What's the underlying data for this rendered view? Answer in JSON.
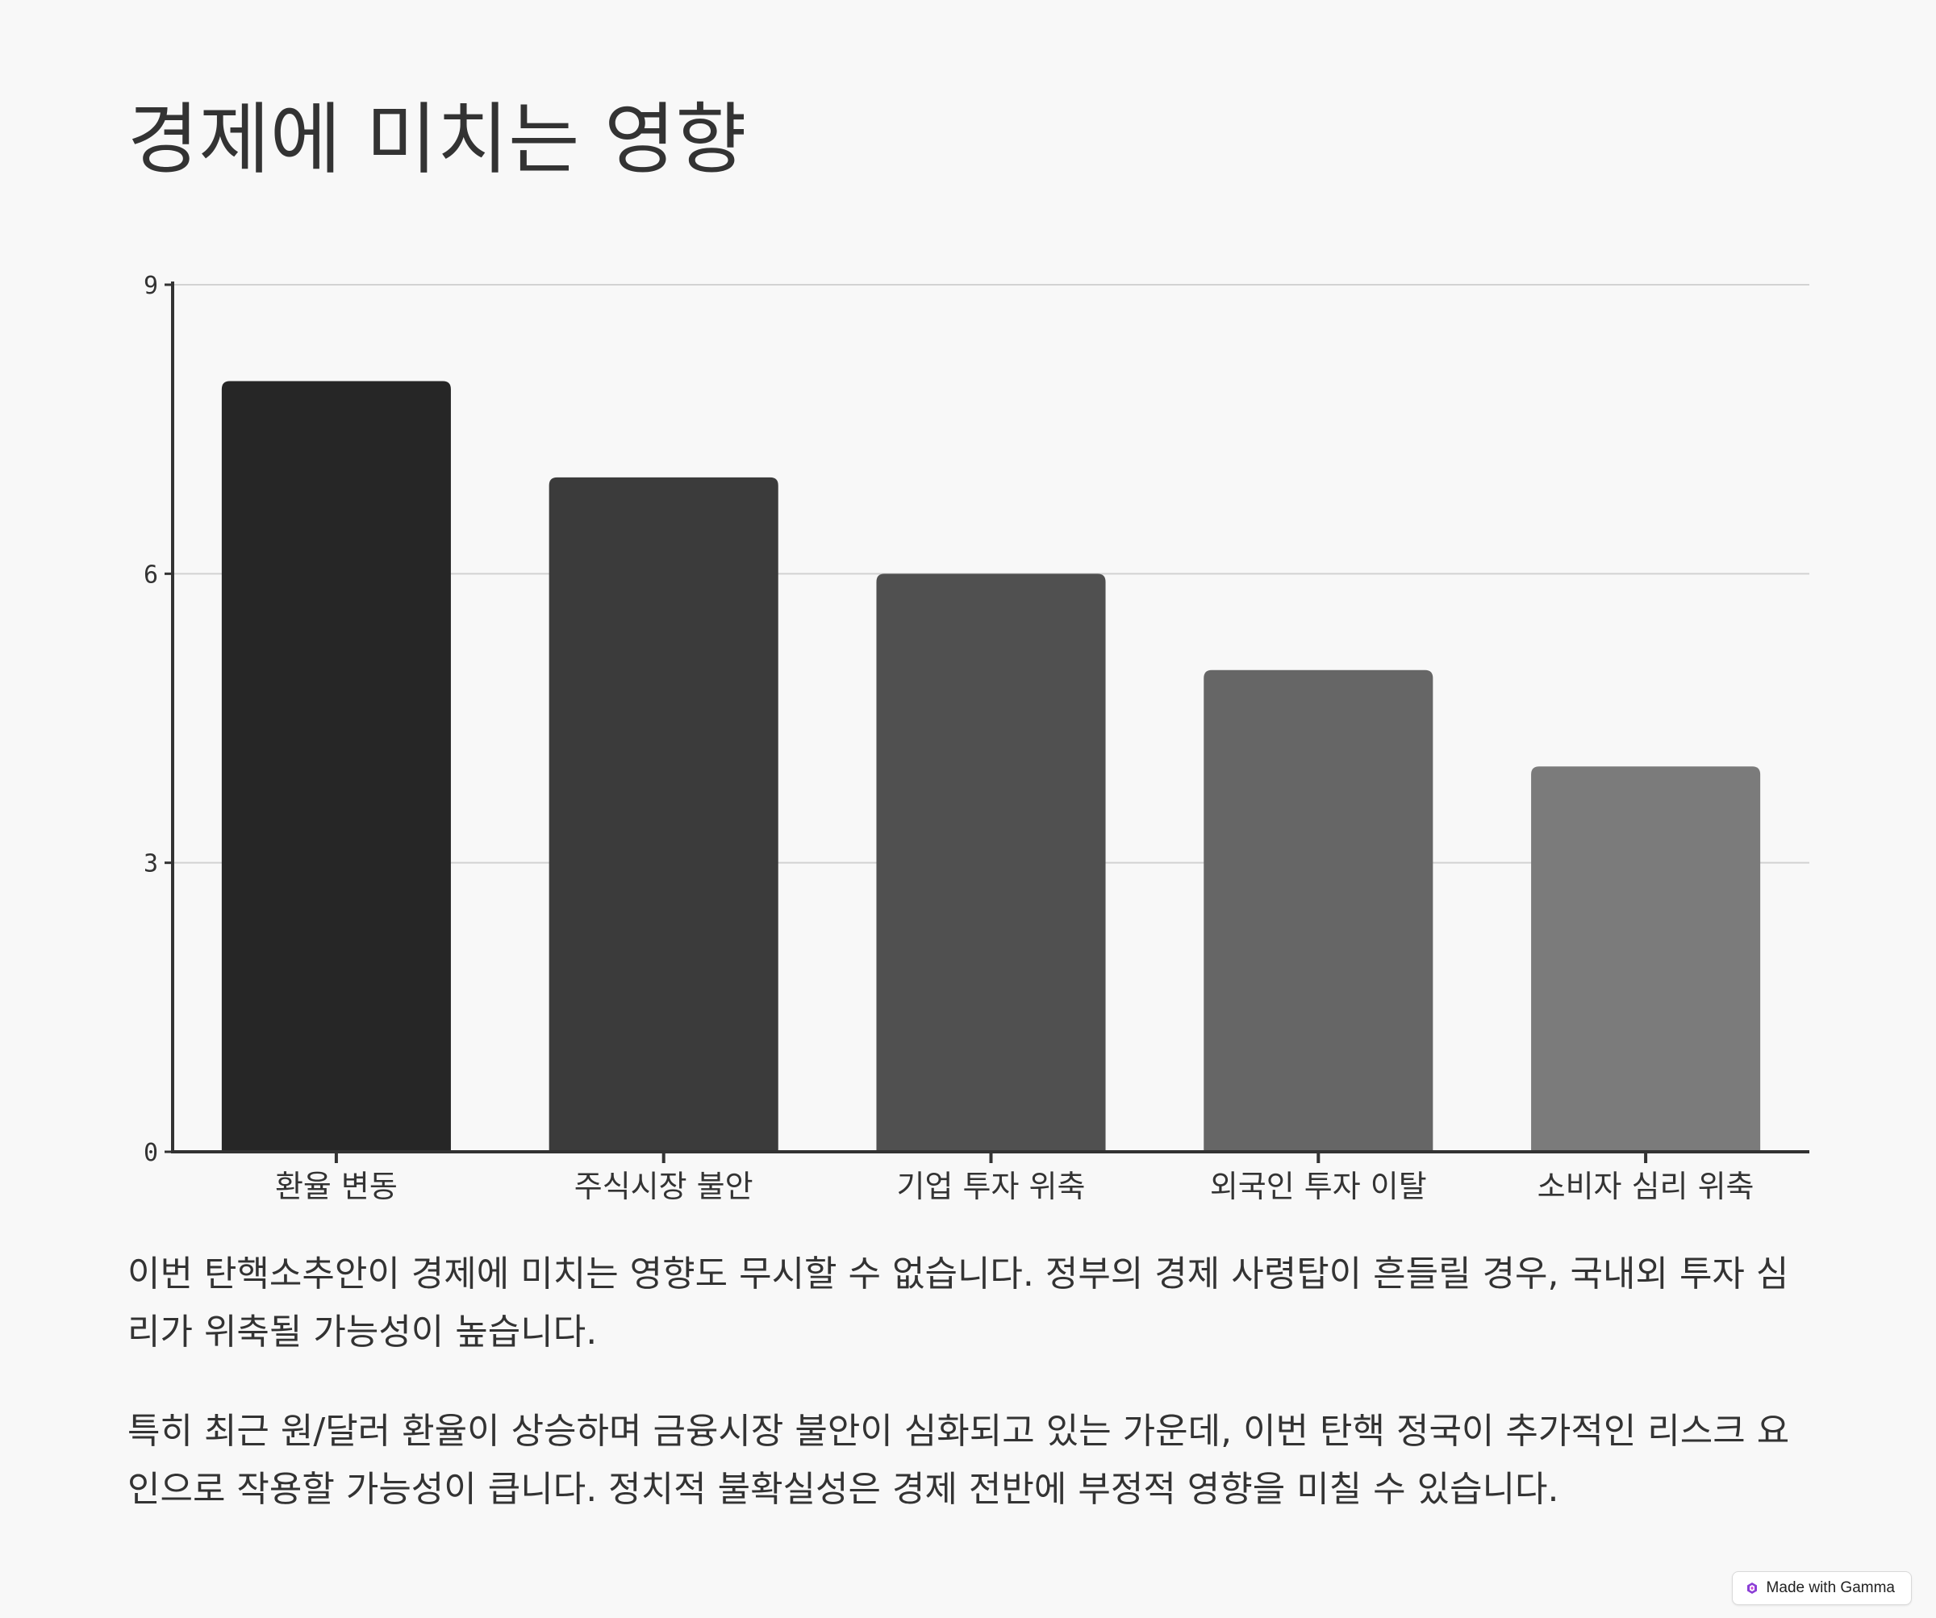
{
  "title": "경제에 미치는 영향",
  "chart_data": {
    "type": "bar",
    "categories": [
      "환율 변동",
      "주식시장 불안",
      "기업 투자 위축",
      "외국인 투자 이탈",
      "소비자 심리 위축"
    ],
    "values": [
      8,
      7,
      6,
      5,
      4
    ],
    "ylim": [
      0,
      9
    ],
    "yticks": [
      0,
      3,
      6,
      9
    ],
    "grid": true,
    "colors": [
      "#262626",
      "#3b3b3b",
      "#505050",
      "#666666",
      "#7b7b7b"
    ],
    "title": "",
    "xlabel": "",
    "ylabel": ""
  },
  "paragraphs": [
    "이번 탄핵소추안이 경제에 미치는 영향도 무시할 수 없습니다. 정부의 경제 사령탑이 흔들릴 경우, 국내외 투자 심리가 위축될 가능성이 높습니다.",
    "특히 최근 원/달러 환율이 상승하며 금융시장 불안이 심화되고 있는 가운데, 이번 탄핵 정국이 추가적인 리스크 요인으로 작용할 가능성이 큽니다. 정치적 불확실성은 경제 전반에 부정적 영향을 미칠 수 있습니다."
  ],
  "badge": {
    "label": "Made with Gamma",
    "icon": "gamma-logo-icon"
  }
}
